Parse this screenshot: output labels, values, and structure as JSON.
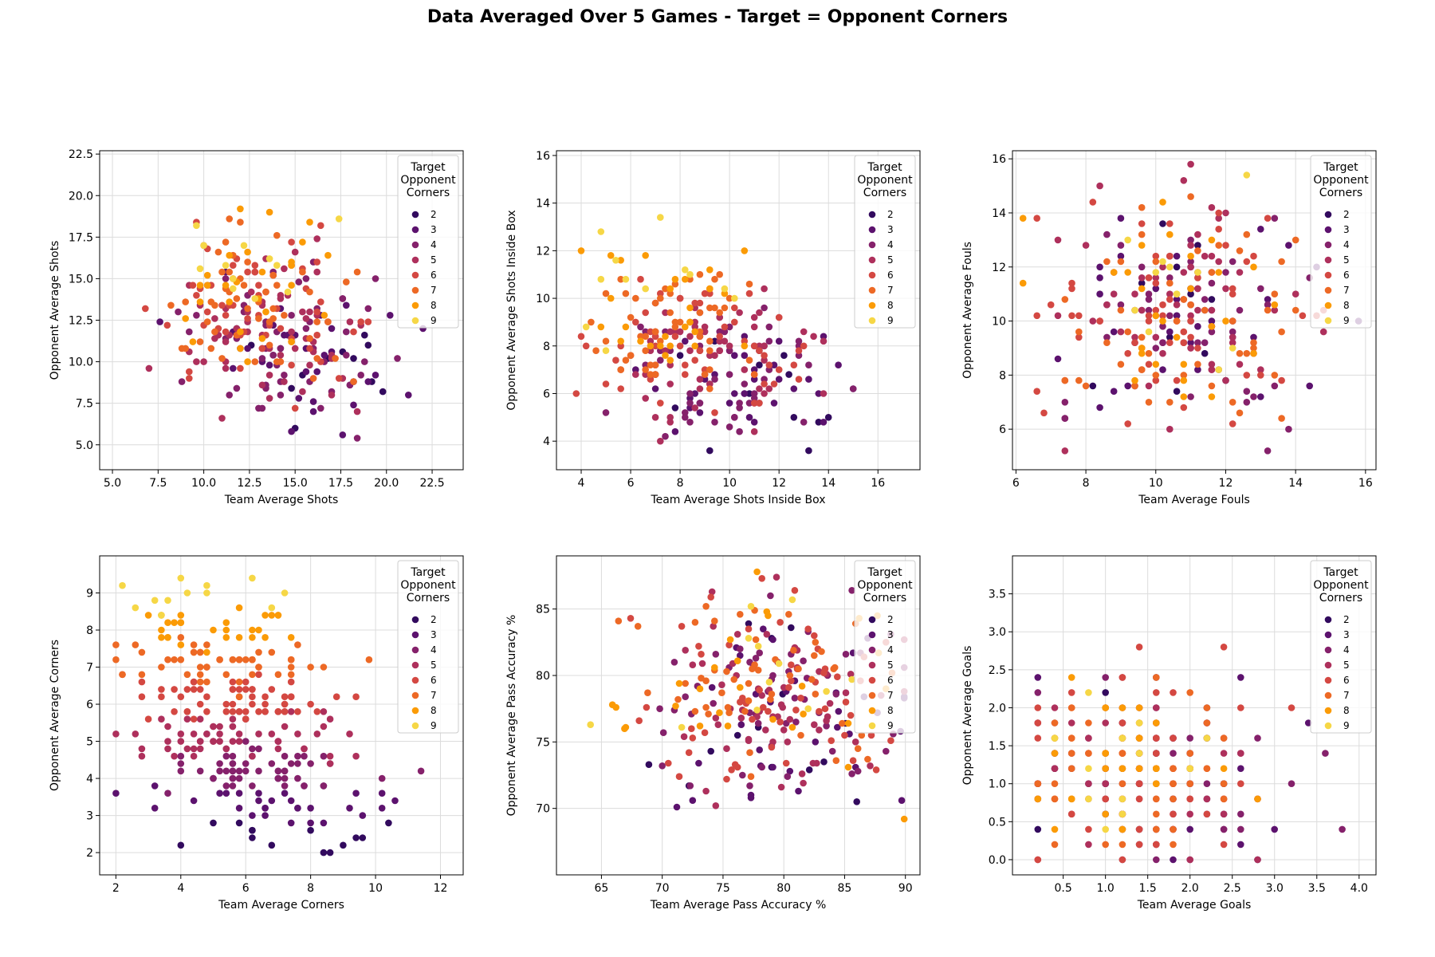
{
  "figure": {
    "title": "Data Averaged Over 5 Games - Target = Opponent Corners"
  },
  "legend": {
    "title_lines": [
      "Target",
      "Opponent",
      "Corners"
    ],
    "entries": [
      {
        "label": "2",
        "color": "#320a5e"
      },
      {
        "label": "3",
        "color": "#5c126e"
      },
      {
        "label": "4",
        "color": "#85216b"
      },
      {
        "label": "5",
        "color": "#ae305c"
      },
      {
        "label": "6",
        "color": "#d44842"
      },
      {
        "label": "7",
        "color": "#ed6925"
      },
      {
        "label": "8",
        "color": "#fb9b06"
      },
      {
        "label": "9",
        "color": "#f6d746"
      }
    ]
  },
  "chart_data": [
    {
      "type": "scatter",
      "title": "",
      "xlabel": "Team Average Shots",
      "ylabel": "Opponent Average Shots",
      "xlim": [
        4.3,
        24.2
      ],
      "ylim": [
        3.5,
        22.7
      ],
      "xticks": [
        "5.0",
        "7.5",
        "10.0",
        "12.5",
        "15.0",
        "17.5",
        "20.0",
        "22.5"
      ],
      "yticks": [
        "5.0",
        "7.5",
        "10.0",
        "12.5",
        "15.0",
        "17.5",
        "20.0",
        "22.5"
      ],
      "xcenter": [
        11.5,
        16.0
      ],
      "ycenter": [
        15.0,
        9.5
      ],
      "xspread": [
        2.4,
        3.0
      ],
      "yspread": [
        2.3,
        2.2
      ],
      "xrange": [
        5.0,
        23.5
      ],
      "yrange": [
        4.4,
        21.8
      ],
      "xround": 0.2,
      "yround": 0.2,
      "points_per_class": [
        14,
        34,
        52,
        60,
        58,
        52,
        28,
        12
      ]
    },
    {
      "type": "scatter",
      "title": "",
      "xlabel": "Team Average Shots Inside Box",
      "ylabel": "Opponent Average Shots Inside Box",
      "xlim": [
        3.0,
        17.7
      ],
      "ylim": [
        2.8,
        16.2
      ],
      "xticks": [
        "4",
        "6",
        "8",
        "10",
        "12",
        "14",
        "16"
      ],
      "yticks": [
        "4",
        "6",
        "8",
        "10",
        "12",
        "14",
        "16"
      ],
      "xcenter": [
        7.0,
        11.0
      ],
      "ycenter": [
        10.0,
        5.6
      ],
      "xspread": [
        1.7,
        2.2
      ],
      "yspread": [
        1.7,
        1.3
      ],
      "xrange": [
        3.6,
        17.0
      ],
      "yrange": [
        3.4,
        15.6
      ],
      "xround": 0.2,
      "yround": 0.2,
      "points_per_class": [
        14,
        34,
        52,
        60,
        58,
        52,
        28,
        12
      ]
    },
    {
      "type": "scatter",
      "title": "",
      "xlabel": "Team Average Fouls",
      "ylabel": "Opponent Average Fouls",
      "xlim": [
        5.9,
        16.3
      ],
      "ylim": [
        4.5,
        16.3
      ],
      "xticks": [
        "6",
        "8",
        "10",
        "12",
        "14",
        "16"
      ],
      "yticks": [
        "6",
        "8",
        "10",
        "12",
        "14",
        "16"
      ],
      "xcenter": [
        10.8,
        10.8
      ],
      "ycenter": [
        10.4,
        10.4
      ],
      "xspread": [
        1.9,
        1.9
      ],
      "yspread": [
        2.0,
        2.0
      ],
      "xrange": [
        6.2,
        15.8
      ],
      "yrange": [
        5.0,
        15.8
      ],
      "xround": 0.2,
      "yround": 0.2,
      "points_per_class": [
        14,
        34,
        52,
        60,
        58,
        52,
        28,
        12
      ]
    },
    {
      "type": "scatter",
      "title": "",
      "xlabel": "Team Average Corners",
      "ylabel": "Opponent Average Corners",
      "xlim": [
        1.5,
        12.7
      ],
      "ylim": [
        1.4,
        10.0
      ],
      "xticks": [
        "2",
        "4",
        "6",
        "8",
        "10",
        "12"
      ],
      "yticks": [
        "2",
        "3",
        "4",
        "5",
        "6",
        "7",
        "8",
        "9"
      ],
      "xcenter": [
        4.6,
        6.8
      ],
      "ycenter": [
        9.0,
        2.4
      ],
      "xspread": [
        1.6,
        1.9
      ],
      "yspread": [
        0.35,
        0.35
      ],
      "xrange": [
        2.0,
        12.2
      ],
      "yrange": [
        1.8,
        9.6
      ],
      "xround": 0.2,
      "yround": 0.2,
      "points_per_class": [
        14,
        34,
        52,
        60,
        58,
        52,
        28,
        12
      ]
    },
    {
      "type": "scatter",
      "title": "",
      "xlabel": "Team Average Pass Accuracy %",
      "ylabel": "Opponent Average Pass Accuracy %",
      "xlim": [
        61.3,
        91.2
      ],
      "ylim": [
        65.0,
        89.0
      ],
      "xticks": [
        "65",
        "70",
        "75",
        "80",
        "85",
        "90"
      ],
      "yticks": [
        "70",
        "75",
        "80",
        "85"
      ],
      "xcenter": [
        77.0,
        81.0
      ],
      "ycenter": [
        80.5,
        77.0
      ],
      "xspread": [
        5.5,
        5.5
      ],
      "yspread": [
        3.5,
        4.0
      ],
      "xrange": [
        62.6,
        89.9
      ],
      "yrange": [
        66.4,
        87.8
      ],
      "xround": 0.1,
      "yround": 0.1,
      "points_per_class": [
        14,
        34,
        52,
        60,
        58,
        52,
        28,
        12
      ]
    },
    {
      "type": "scatter",
      "title": "",
      "xlabel": "Team Average Goals",
      "ylabel": "Opponent Average Goals",
      "xlim": [
        -0.1,
        4.2
      ],
      "ylim": [
        -0.2,
        4.0
      ],
      "xticks": [
        "0.5",
        "1.0",
        "1.5",
        "2.0",
        "2.5",
        "3.0",
        "3.5",
        "4.0"
      ],
      "yticks": [
        "0.0",
        "0.5",
        "1.0",
        "1.5",
        "2.0",
        "2.5",
        "3.0",
        "3.5"
      ],
      "xcenter": [
        1.2,
        1.6
      ],
      "ycenter": [
        1.4,
        1.0
      ],
      "xspread": [
        0.6,
        0.8
      ],
      "yspread": [
        0.6,
        0.6
      ],
      "xrange": [
        0.2,
        4.0
      ],
      "yrange": [
        0.0,
        3.8
      ],
      "xround": 0.2,
      "yround": 0.2,
      "points_per_class": [
        14,
        34,
        52,
        60,
        58,
        52,
        28,
        12
      ]
    }
  ]
}
